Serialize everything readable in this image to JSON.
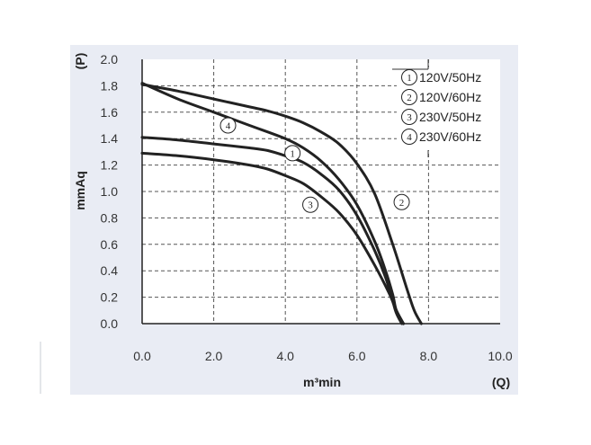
{
  "chart_data": {
    "type": "line",
    "xlabel": "m³min",
    "ylabel": "mmAq",
    "x_axis_symbol": "(Q)",
    "y_axis_symbol": "(P)",
    "xlim": [
      0,
      10
    ],
    "ylim": [
      0,
      2
    ],
    "x_ticks": [
      "0.0",
      "2.0",
      "4.0",
      "6.0",
      "8.0",
      "10.0"
    ],
    "y_ticks": [
      "0.0",
      "0.2",
      "0.4",
      "0.6",
      "0.8",
      "1.0",
      "1.2",
      "1.4",
      "1.6",
      "1.8",
      "2.0"
    ],
    "grid": true,
    "legend_position": "top-right",
    "series": [
      {
        "name": "120V/50Hz",
        "marker": "1",
        "marker_at": [
          4.2,
          1.29
        ],
        "x": [
          0,
          1,
          2,
          3,
          3.5,
          4.0,
          4.5,
          5.0,
          5.5,
          6.0,
          6.5,
          6.8,
          7.0,
          7.1,
          7.25
        ],
        "y": [
          1.41,
          1.39,
          1.36,
          1.33,
          1.31,
          1.27,
          1.22,
          1.13,
          1.01,
          0.82,
          0.55,
          0.35,
          0.17,
          0.08,
          0.0
        ]
      },
      {
        "name": "120V/60Hz",
        "marker": "2",
        "marker_at": [
          7.25,
          0.92
        ],
        "x": [
          0,
          1,
          2,
          3,
          3.5,
          4.0,
          4.5,
          5.0,
          5.5,
          6.0,
          6.5,
          7.0,
          7.4,
          7.6,
          7.8
        ],
        "y": [
          1.81,
          1.76,
          1.7,
          1.64,
          1.61,
          1.57,
          1.52,
          1.45,
          1.36,
          1.21,
          0.98,
          0.6,
          0.26,
          0.1,
          0.0
        ]
      },
      {
        "name": "230V/50Hz",
        "marker": "3",
        "marker_at": [
          4.7,
          0.9
        ],
        "x": [
          0,
          1,
          2,
          3,
          3.5,
          4.0,
          4.5,
          5.0,
          5.5,
          6.0,
          6.5,
          6.9,
          7.1,
          7.3
        ],
        "y": [
          1.29,
          1.27,
          1.24,
          1.2,
          1.17,
          1.12,
          1.06,
          0.96,
          0.84,
          0.67,
          0.44,
          0.23,
          0.1,
          0.0
        ]
      },
      {
        "name": "230V/60Hz",
        "marker": "4",
        "marker_at": [
          2.4,
          1.5
        ],
        "x": [
          0,
          1,
          2,
          3,
          4.0,
          4.5,
          5.0,
          5.5,
          6.0,
          6.5,
          6.8,
          7.0,
          7.1,
          7.3
        ],
        "y": [
          1.82,
          1.7,
          1.6,
          1.5,
          1.4,
          1.33,
          1.23,
          1.09,
          0.9,
          0.62,
          0.4,
          0.22,
          0.1,
          0.0
        ]
      }
    ]
  }
}
